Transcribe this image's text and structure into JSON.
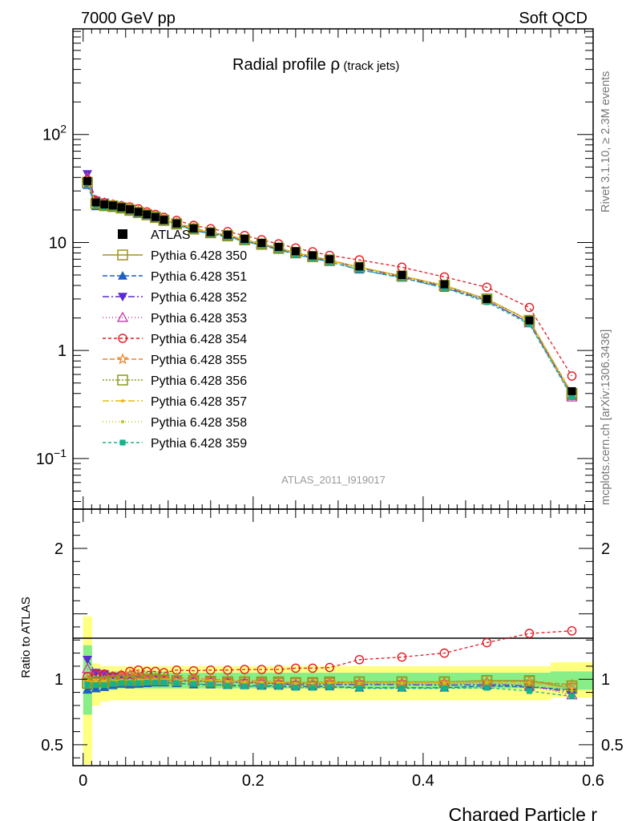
{
  "header": {
    "left": "7000 GeV pp",
    "right": "Soft QCD"
  },
  "title": {
    "main": "Radial profile ",
    "symbol": "ρ",
    "sub": " (track jets)"
  },
  "side_labels": {
    "upper": "Rivet 3.1.10, ≥ 2.3M events",
    "lower": "mcplots.cern.ch [arXiv:1306.3436]"
  },
  "analysis_id": "ATLAS_2011_I919017",
  "colors": {
    "atlas": "#000000",
    "p350": "#a08f2d",
    "p351": "#1f5fbf",
    "p352": "#5b2ad1",
    "p353": "#c23aa6",
    "p354": "#e01b24",
    "p355": "#f08226",
    "p356": "#8a9a1c",
    "p357": "#e8b80f",
    "p358": "#b8c814",
    "p359": "#16b38a",
    "band_yellow": "#ffff80",
    "band_green": "#88ee88"
  },
  "chart_data": [
    {
      "type": "line",
      "panel": "main",
      "title": "Radial profile ρ (track jets)",
      "xlabel": "",
      "ylabel": "",
      "yscale": "log",
      "xlim": [
        -0.012,
        0.6
      ],
      "ylim": [
        0.034,
        950
      ],
      "y_ticks": [
        {
          "value": 0.1,
          "base": "10",
          "exp": "−1"
        },
        {
          "value": 1,
          "label": "1"
        },
        {
          "value": 10,
          "label": "10"
        },
        {
          "value": 100,
          "base": "10",
          "exp": "2"
        }
      ],
      "legend_position": "left-middle",
      "x": [
        0.005,
        0.015,
        0.025,
        0.035,
        0.045,
        0.055,
        0.065,
        0.075,
        0.085,
        0.095,
        0.11,
        0.13,
        0.15,
        0.17,
        0.19,
        0.21,
        0.23,
        0.25,
        0.27,
        0.29,
        0.325,
        0.375,
        0.425,
        0.475,
        0.525,
        0.575
      ],
      "series": [
        {
          "name": "ATLAS",
          "key": "atlas",
          "marker": "square-filled",
          "dash": "",
          "values": [
            37,
            23.5,
            22.5,
            22,
            21.2,
            20.3,
            19.2,
            18.2,
            17.2,
            16.2,
            15,
            13.5,
            12.5,
            11.8,
            10.8,
            9.9,
            9.1,
            8.3,
            7.6,
            7.0,
            6.0,
            5.0,
            4.1,
            3.0,
            1.9,
            0.42
          ]
        },
        {
          "name": "Pythia 6.428 350",
          "key": "p350",
          "marker": "square-open",
          "dash": "",
          "values": [
            36,
            23,
            22,
            21.5,
            20.8,
            19.8,
            18.9,
            18,
            17,
            16,
            14.8,
            13.3,
            12.3,
            11.5,
            10.6,
            9.6,
            8.8,
            8.0,
            7.4,
            6.8,
            5.9,
            4.9,
            4.0,
            3.0,
            1.9,
            0.39
          ]
        },
        {
          "name": "Pythia 6.428 351",
          "key": "p351",
          "marker": "triangle-up-filled",
          "dash": "6,3",
          "values": [
            34,
            21.6,
            21.2,
            21.0,
            20.5,
            19.5,
            18.5,
            17.7,
            16.8,
            15.8,
            14.6,
            13.0,
            12.0,
            11.3,
            10.3,
            9.4,
            8.6,
            7.8,
            7.2,
            6.6,
            5.6,
            4.7,
            3.8,
            2.9,
            1.8,
            0.39
          ]
        },
        {
          "name": "Pythia 6.428 352",
          "key": "p352",
          "marker": "triangle-down-filled",
          "dash": "8,3,2,3",
          "values": [
            43,
            24.5,
            23.5,
            22.5,
            21.5,
            20.5,
            19.3,
            18.3,
            17.3,
            16.2,
            14.9,
            13.3,
            12.3,
            11.5,
            10.5,
            9.6,
            8.7,
            7.9,
            7.3,
            6.8,
            5.8,
            4.8,
            3.9,
            2.9,
            1.8,
            0.38
          ]
        },
        {
          "name": "Pythia 6.428 353",
          "key": "p353",
          "marker": "triangle-up-open",
          "dash": "1,3",
          "values": [
            40,
            24.5,
            23.3,
            22.3,
            21.8,
            20.8,
            19.6,
            18.5,
            17.5,
            16.3,
            15.0,
            13.4,
            12.4,
            11.6,
            10.6,
            9.7,
            8.8,
            8.0,
            7.4,
            6.8,
            5.8,
            4.8,
            3.9,
            3.0,
            1.8,
            0.37
          ]
        },
        {
          "name": "Pythia 6.428 354",
          "key": "p354",
          "marker": "circle-open",
          "dash": "4,3",
          "values": [
            38,
            24.5,
            23.3,
            22.5,
            21.8,
            21.3,
            20.5,
            19.2,
            18.2,
            17.1,
            16.0,
            14.4,
            13.4,
            12.6,
            11.6,
            10.6,
            9.7,
            8.9,
            8.2,
            7.6,
            6.9,
            5.9,
            4.8,
            3.85,
            2.5,
            0.58
          ]
        },
        {
          "name": "Pythia 6.428 355",
          "key": "p355",
          "marker": "star-open",
          "dash": "6,3",
          "values": [
            37,
            23,
            22.3,
            22,
            21.5,
            21,
            19.8,
            18.6,
            17.5,
            16.4,
            15.2,
            13.6,
            12.5,
            11.7,
            10.7,
            9.7,
            8.9,
            8.1,
            7.4,
            6.9,
            5.9,
            4.9,
            4.0,
            3.0,
            1.9,
            0.4
          ]
        },
        {
          "name": "Pythia 6.428 356",
          "key": "p356",
          "marker": "square-open",
          "dash": "2,2",
          "values": [
            36,
            23,
            22,
            21.8,
            21,
            20.1,
            19,
            18.1,
            17.2,
            16.1,
            14.9,
            13.4,
            12.3,
            11.6,
            10.6,
            9.7,
            8.9,
            8.1,
            7.4,
            6.9,
            5.9,
            4.9,
            4.0,
            3.0,
            1.9,
            0.4
          ]
        },
        {
          "name": "Pythia 6.428 357",
          "key": "p357",
          "marker": "dot",
          "dash": "8,3,2,3",
          "values": [
            36.5,
            23.2,
            22.2,
            21.8,
            21.1,
            20.2,
            19.1,
            18.2,
            17.2,
            16.2,
            14.9,
            13.4,
            12.4,
            11.6,
            10.6,
            9.7,
            8.9,
            8.0,
            7.4,
            6.8,
            5.9,
            4.9,
            4.0,
            3.0,
            1.9,
            0.39
          ]
        },
        {
          "name": "Pythia 6.428 358",
          "key": "p358",
          "marker": "dot",
          "dash": "1,3",
          "values": [
            36,
            23,
            22.1,
            21.7,
            21,
            20.1,
            19,
            18.1,
            17.1,
            16.1,
            14.8,
            13.3,
            12.3,
            11.5,
            10.5,
            9.6,
            8.8,
            8.0,
            7.3,
            6.8,
            5.8,
            4.8,
            3.9,
            2.9,
            1.85,
            0.38
          ]
        },
        {
          "name": "Pythia 6.428 359",
          "key": "p359",
          "marker": "square-filled-small",
          "dash": "4,3",
          "values": [
            35.5,
            22.4,
            21.5,
            21.2,
            20.6,
            19.7,
            18.6,
            17.7,
            16.8,
            15.8,
            14.5,
            13.0,
            12.0,
            11.2,
            10.2,
            9.4,
            8.6,
            7.7,
            7.1,
            6.6,
            5.6,
            4.7,
            3.8,
            2.8,
            1.75,
            0.37
          ]
        }
      ]
    },
    {
      "type": "line",
      "panel": "ratio",
      "xlabel": "Charged Particle r",
      "ylabel": "Ratio to ATLAS",
      "xlim": [
        -0.012,
        0.6
      ],
      "ylim": [
        0.34,
        2.3
      ],
      "x_ticks": [
        0,
        0.2,
        0.4,
        0.6
      ],
      "y_ticks": [
        0.5,
        1,
        2
      ],
      "x_edges": [
        0,
        0.01,
        0.02,
        0.03,
        0.04,
        0.05,
        0.06,
        0.07,
        0.08,
        0.09,
        0.1,
        0.12,
        0.14,
        0.16,
        0.18,
        0.2,
        0.22,
        0.24,
        0.26,
        0.28,
        0.3,
        0.35,
        0.4,
        0.45,
        0.5,
        0.55,
        0.6
      ],
      "band_yellow": [
        [
          0.35,
          1.48
        ],
        [
          0.8,
          1.12
        ],
        [
          0.83,
          1.1
        ],
        [
          0.84,
          1.1
        ],
        [
          0.84,
          1.1
        ],
        [
          0.84,
          1.1
        ],
        [
          0.84,
          1.1
        ],
        [
          0.84,
          1.1
        ],
        [
          0.84,
          1.1
        ],
        [
          0.84,
          1.1
        ],
        [
          0.84,
          1.1
        ],
        [
          0.84,
          1.1
        ],
        [
          0.84,
          1.1
        ],
        [
          0.84,
          1.1
        ],
        [
          0.84,
          1.1
        ],
        [
          0.84,
          1.1
        ],
        [
          0.84,
          1.1
        ],
        [
          0.84,
          1.1
        ],
        [
          0.84,
          1.1
        ],
        [
          0.84,
          1.1
        ],
        [
          0.84,
          1.1
        ],
        [
          0.84,
          1.1
        ],
        [
          0.84,
          1.1
        ],
        [
          0.84,
          1.1
        ],
        [
          0.84,
          1.1
        ],
        [
          0.86,
          1.13
        ]
      ],
      "band_green": [
        [
          0.73,
          1.26
        ],
        [
          0.9,
          1.06
        ],
        [
          0.92,
          1.06
        ],
        [
          0.92,
          1.06
        ],
        [
          0.93,
          1.06
        ],
        [
          0.93,
          1.06
        ],
        [
          0.93,
          1.06
        ],
        [
          0.93,
          1.06
        ],
        [
          0.93,
          1.06
        ],
        [
          0.93,
          1.06
        ],
        [
          0.93,
          1.05
        ],
        [
          0.93,
          1.05
        ],
        [
          0.93,
          1.05
        ],
        [
          0.93,
          1.05
        ],
        [
          0.93,
          1.05
        ],
        [
          0.93,
          1.05
        ],
        [
          0.93,
          1.05
        ],
        [
          0.93,
          1.05
        ],
        [
          0.93,
          1.05
        ],
        [
          0.93,
          1.05
        ],
        [
          0.93,
          1.05
        ],
        [
          0.93,
          1.05
        ],
        [
          0.93,
          1.05
        ],
        [
          0.93,
          1.05
        ],
        [
          0.93,
          1.05
        ],
        [
          0.92,
          1.06
        ]
      ],
      "ratios": {
        "p350": [
          0.97,
          0.98,
          0.98,
          0.98,
          0.98,
          0.98,
          0.98,
          0.99,
          0.99,
          0.99,
          0.99,
          0.99,
          0.98,
          0.98,
          0.98,
          0.97,
          0.97,
          0.97,
          0.97,
          0.97,
          0.98,
          0.98,
          0.98,
          0.99,
          0.99,
          0.93
        ],
        "p351": [
          0.92,
          0.93,
          0.94,
          0.955,
          0.965,
          0.96,
          0.965,
          0.97,
          0.975,
          0.975,
          0.97,
          0.96,
          0.96,
          0.955,
          0.955,
          0.95,
          0.95,
          0.945,
          0.945,
          0.945,
          0.935,
          0.935,
          0.935,
          0.95,
          0.94,
          0.92
        ],
        "p352": [
          1.15,
          1.05,
          1.04,
          1.02,
          1.01,
          1.01,
          1.005,
          1.005,
          1.0,
          1.0,
          0.99,
          0.985,
          0.985,
          0.98,
          0.975,
          0.97,
          0.965,
          0.96,
          0.96,
          0.96,
          0.96,
          0.96,
          0.955,
          0.96,
          0.95,
          0.9
        ],
        "p353": [
          1.08,
          1.04,
          1.03,
          1.02,
          1.03,
          1.03,
          1.02,
          1.015,
          1.01,
          1.005,
          1.0,
          0.99,
          0.99,
          0.985,
          0.98,
          0.98,
          0.97,
          0.965,
          0.97,
          0.97,
          0.97,
          0.965,
          0.965,
          0.975,
          0.95,
          0.88
        ],
        "p354": [
          1.02,
          1.04,
          1.04,
          1.02,
          1.03,
          1.06,
          1.07,
          1.06,
          1.06,
          1.05,
          1.07,
          1.065,
          1.07,
          1.07,
          1.075,
          1.075,
          1.075,
          1.085,
          1.085,
          1.09,
          1.15,
          1.17,
          1.2,
          1.28,
          1.35,
          1.37
        ],
        "p355": [
          1.0,
          0.98,
          0.99,
          1.0,
          1.02,
          1.04,
          1.03,
          1.02,
          1.015,
          1.01,
          1.01,
          1.005,
          1.0,
          0.995,
          0.99,
          0.985,
          0.98,
          0.975,
          0.975,
          0.98,
          0.98,
          0.98,
          0.98,
          0.985,
          0.985,
          0.96
        ],
        "p356": [
          0.97,
          0.98,
          0.98,
          0.99,
          0.99,
          0.99,
          0.99,
          0.995,
          1.0,
          0.995,
          0.99,
          0.99,
          0.985,
          0.98,
          0.98,
          0.98,
          0.98,
          0.975,
          0.975,
          0.98,
          0.98,
          0.98,
          0.98,
          0.99,
          0.985,
          0.95
        ],
        "p357": [
          0.985,
          0.985,
          0.985,
          0.99,
          0.995,
          0.995,
          0.995,
          1.0,
          1.0,
          1.0,
          0.995,
          0.99,
          0.99,
          0.985,
          0.98,
          0.98,
          0.975,
          0.97,
          0.97,
          0.975,
          0.975,
          0.975,
          0.975,
          0.98,
          0.975,
          0.93
        ],
        "p358": [
          0.97,
          0.98,
          0.98,
          0.985,
          0.99,
          0.99,
          0.99,
          0.995,
          0.995,
          0.995,
          0.99,
          0.985,
          0.985,
          0.98,
          0.975,
          0.97,
          0.97,
          0.965,
          0.965,
          0.965,
          0.965,
          0.965,
          0.965,
          0.97,
          0.965,
          0.91
        ],
        "p359": [
          0.96,
          0.955,
          0.955,
          0.965,
          0.97,
          0.97,
          0.97,
          0.975,
          0.975,
          0.975,
          0.97,
          0.965,
          0.96,
          0.95,
          0.945,
          0.945,
          0.945,
          0.935,
          0.935,
          0.94,
          0.93,
          0.93,
          0.93,
          0.935,
          0.91,
          0.87
        ]
      }
    }
  ]
}
